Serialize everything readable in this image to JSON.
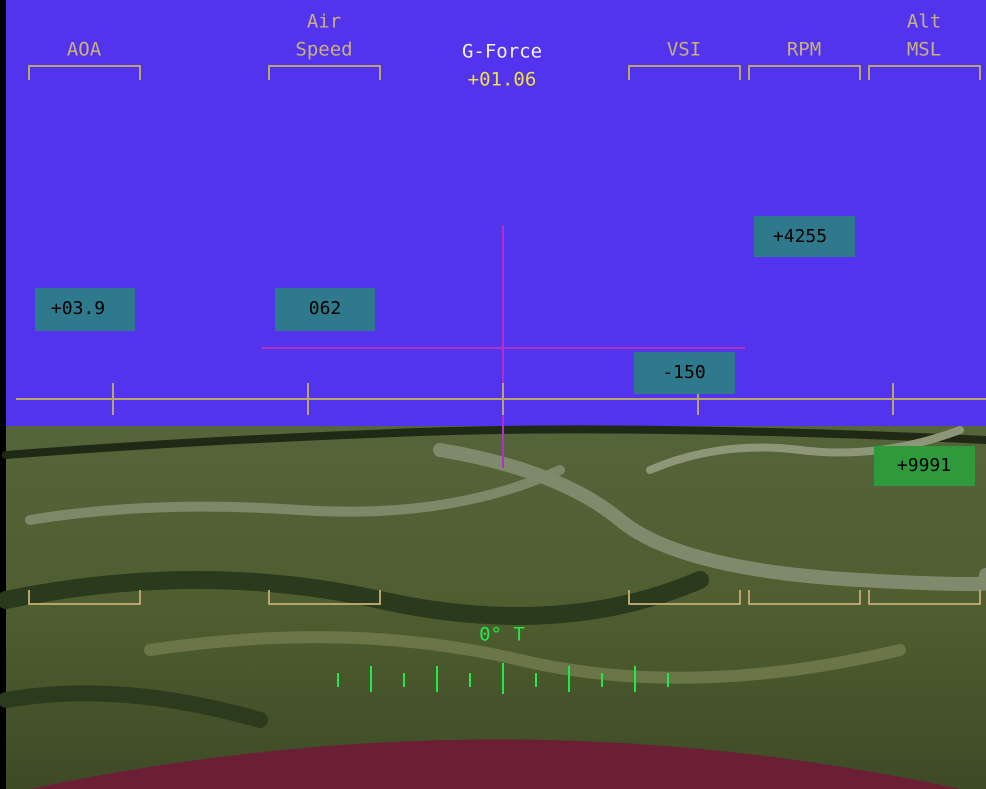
{
  "hud": {
    "instruments": [
      {
        "label": [
          "AOA"
        ],
        "readout": "+03.9"
      },
      {
        "label": [
          "Air",
          "Speed"
        ],
        "readout": "062"
      },
      {
        "label": [
          "VSI"
        ],
        "readout": "-150"
      },
      {
        "label": [
          "RPM"
        ],
        "readout": "+4255"
      },
      {
        "label": [
          "Alt",
          "MSL"
        ],
        "readout": "+9991"
      }
    ],
    "g_force": {
      "label": "G-Force",
      "value": "+01.06"
    },
    "heading": "0° T"
  }
}
